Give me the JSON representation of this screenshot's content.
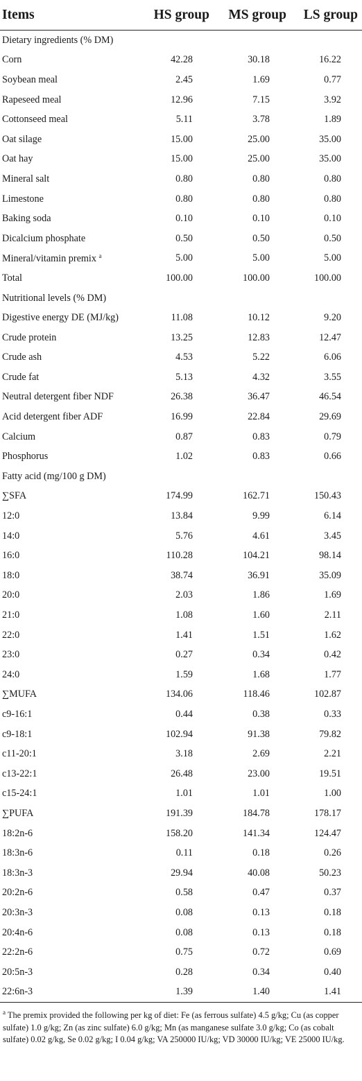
{
  "header": [
    "Items",
    "HS group",
    "MS group",
    "LS group"
  ],
  "rows": [
    {
      "label": "Dietary ingredients (% DM)",
      "section": true
    },
    {
      "label": "Corn",
      "values": [
        "42.28",
        "30.18",
        "16.22"
      ]
    },
    {
      "label": "Soybean meal",
      "values": [
        "2.45",
        "1.69",
        "0.77"
      ]
    },
    {
      "label": "Rapeseed meal",
      "values": [
        "12.96",
        "7.15",
        "3.92"
      ]
    },
    {
      "label": "Cottonseed meal",
      "values": [
        "5.11",
        "3.78",
        "1.89"
      ]
    },
    {
      "label": "Oat silage",
      "values": [
        "15.00",
        "25.00",
        "35.00"
      ]
    },
    {
      "label": "Oat hay",
      "values": [
        "15.00",
        "25.00",
        "35.00"
      ]
    },
    {
      "label": "Mineral salt",
      "values": [
        "0.80",
        "0.80",
        "0.80"
      ]
    },
    {
      "label": "Limestone",
      "values": [
        "0.80",
        "0.80",
        "0.80"
      ]
    },
    {
      "label": "Baking soda",
      "values": [
        "0.10",
        "0.10",
        "0.10"
      ]
    },
    {
      "label": "Dicalcium phosphate",
      "values": [
        "0.50",
        "0.50",
        "0.50"
      ]
    },
    {
      "label": "Mineral/vitamin premix",
      "sup": "a",
      "values": [
        "5.00",
        "5.00",
        "5.00"
      ]
    },
    {
      "label": "Total",
      "values": [
        "100.00",
        "100.00",
        "100.00"
      ]
    },
    {
      "label": "Nutritional levels (% DM)",
      "section": true
    },
    {
      "label": "Digestive energy DE (MJ/kg)",
      "values": [
        "11.08",
        "10.12",
        "9.20"
      ]
    },
    {
      "label": "Crude protein",
      "values": [
        "13.25",
        "12.83",
        "12.47"
      ]
    },
    {
      "label": "Crude ash",
      "values": [
        "4.53",
        "5.22",
        "6.06"
      ]
    },
    {
      "label": "Crude fat",
      "values": [
        "5.13",
        "4.32",
        "3.55"
      ]
    },
    {
      "label": "Neutral detergent fiber NDF",
      "values": [
        "26.38",
        "36.47",
        "46.54"
      ]
    },
    {
      "label": "Acid detergent fiber ADF",
      "values": [
        "16.99",
        "22.84",
        "29.69"
      ]
    },
    {
      "label": "Calcium",
      "values": [
        "0.87",
        "0.83",
        "0.79"
      ]
    },
    {
      "label": "Phosphorus",
      "values": [
        "1.02",
        "0.83",
        "0.66"
      ]
    },
    {
      "label": "Fatty acid (mg/100 g DM)",
      "section": true
    },
    {
      "label": "∑SFA",
      "values": [
        "174.99",
        "162.71",
        "150.43"
      ]
    },
    {
      "label": "12:0",
      "values": [
        "13.84",
        "9.99",
        "6.14"
      ]
    },
    {
      "label": "14:0",
      "values": [
        "5.76",
        "4.61",
        "3.45"
      ]
    },
    {
      "label": "16:0",
      "values": [
        "110.28",
        "104.21",
        "98.14"
      ]
    },
    {
      "label": "18:0",
      "values": [
        "38.74",
        "36.91",
        "35.09"
      ]
    },
    {
      "label": "20:0",
      "values": [
        "2.03",
        "1.86",
        "1.69"
      ]
    },
    {
      "label": "21:0",
      "values": [
        "1.08",
        "1.60",
        "2.11"
      ]
    },
    {
      "label": "22:0",
      "values": [
        "1.41",
        "1.51",
        "1.62"
      ]
    },
    {
      "label": "23:0",
      "values": [
        "0.27",
        "0.34",
        "0.42"
      ]
    },
    {
      "label": "24:0",
      "values": [
        "1.59",
        "1.68",
        "1.77"
      ]
    },
    {
      "label": "∑MUFA",
      "values": [
        "134.06",
        "118.46",
        "102.87"
      ]
    },
    {
      "label": "c9-16:1",
      "values": [
        "0.44",
        "0.38",
        "0.33"
      ]
    },
    {
      "label": "c9-18:1",
      "values": [
        "102.94",
        "91.38",
        "79.82"
      ]
    },
    {
      "label": "c11-20:1",
      "values": [
        "3.18",
        "2.69",
        "2.21"
      ]
    },
    {
      "label": "c13-22:1",
      "values": [
        "26.48",
        "23.00",
        "19.51"
      ]
    },
    {
      "label": "c15-24:1",
      "values": [
        "1.01",
        "1.01",
        "1.00"
      ]
    },
    {
      "label": "∑PUFA",
      "values": [
        "191.39",
        "184.78",
        "178.17"
      ]
    },
    {
      "label": "18:2n-6",
      "values": [
        "158.20",
        "141.34",
        "124.47"
      ]
    },
    {
      "label": "18:3n-6",
      "values": [
        "0.11",
        "0.18",
        "0.26"
      ]
    },
    {
      "label": "18:3n-3",
      "values": [
        "29.94",
        "40.08",
        "50.23"
      ]
    },
    {
      "label": "20:2n-6",
      "values": [
        "0.58",
        "0.47",
        "0.37"
      ]
    },
    {
      "label": "20:3n-3",
      "values": [
        "0.08",
        "0.13",
        "0.18"
      ]
    },
    {
      "label": "20:4n-6",
      "values": [
        "0.08",
        "0.13",
        "0.18"
      ]
    },
    {
      "label": "22:2n-6",
      "values": [
        "0.75",
        "0.72",
        "0.69"
      ]
    },
    {
      "label": "20:5n-3",
      "values": [
        "0.28",
        "0.34",
        "0.40"
      ]
    },
    {
      "label": "22:6n-3",
      "values": [
        "1.39",
        "1.40",
        "1.41"
      ]
    }
  ],
  "footnote": {
    "marker": "a",
    "text": " The premix provided the following per kg of diet: Fe (as ferrous sulfate) 4.5 g/kg; Cu (as copper sulfate) 1.0 g/kg; Zn (as zinc sulfate) 6.0 g/kg; Mn (as manganese sulfate 3.0 g/kg; Co (as cobalt sulfate) 0.02 g/kg, Se 0.02 g/kg; I 0.04 g/kg; VA 250000 IU/kg; VD 30000 IU/kg; VE 25000 IU/kg."
  }
}
